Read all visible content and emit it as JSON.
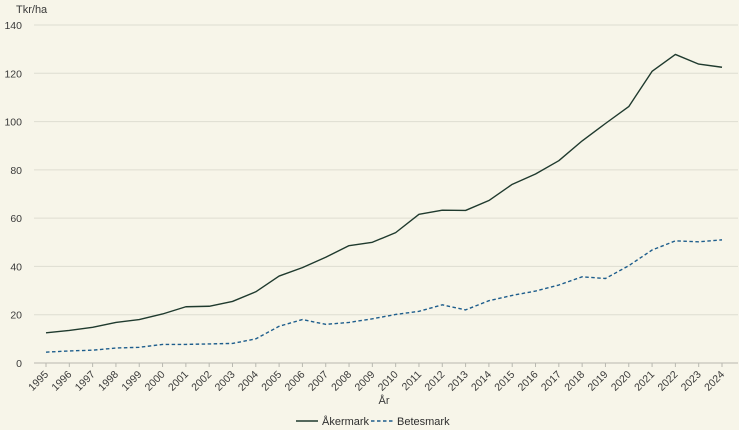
{
  "chart_data": {
    "type": "line",
    "ylabel": "Tkr/ha",
    "xlabel": "År",
    "ylim": [
      0,
      140
    ],
    "yticks": [
      0,
      20,
      40,
      60,
      80,
      100,
      120,
      140
    ],
    "grid": "horizontal",
    "legend": "bottom-center",
    "categories": [
      "1995",
      "1996",
      "1997",
      "1998",
      "1999",
      "2000",
      "2001",
      "2002",
      "2003",
      "2004",
      "2005",
      "2006",
      "2007",
      "2008",
      "2009",
      "2010",
      "2011",
      "2012",
      "2013",
      "2014",
      "2015",
      "2016",
      "2017",
      "2018",
      "2019",
      "2020",
      "2021",
      "2022",
      "2023",
      "2024"
    ],
    "series": [
      {
        "name": "Åkermark",
        "color": "#1f3a2e",
        "style": "solid",
        "values": [
          12.5,
          13.5,
          14.8,
          16.8,
          18.0,
          20.3,
          23.3,
          23.5,
          25.5,
          29.5,
          36.0,
          39.5,
          43.8,
          48.6,
          50.0,
          54.0,
          61.6,
          63.3,
          63.2,
          67.3,
          74.0,
          78.3,
          83.8,
          92.0,
          99.2,
          106.2,
          120.8,
          127.8,
          123.8,
          122.5
        ]
      },
      {
        "name": "Betesmark",
        "color": "#1d5d8c",
        "style": "dashed",
        "values": [
          4.5,
          5.0,
          5.3,
          6.2,
          6.5,
          7.7,
          7.7,
          7.9,
          8.1,
          10.0,
          15.2,
          18.0,
          16.0,
          16.8,
          18.3,
          20.1,
          21.4,
          24.1,
          22.0,
          25.8,
          28.0,
          29.8,
          32.3,
          35.7,
          35.0,
          40.3,
          46.8,
          50.6,
          50.2,
          51.0
        ]
      }
    ]
  }
}
